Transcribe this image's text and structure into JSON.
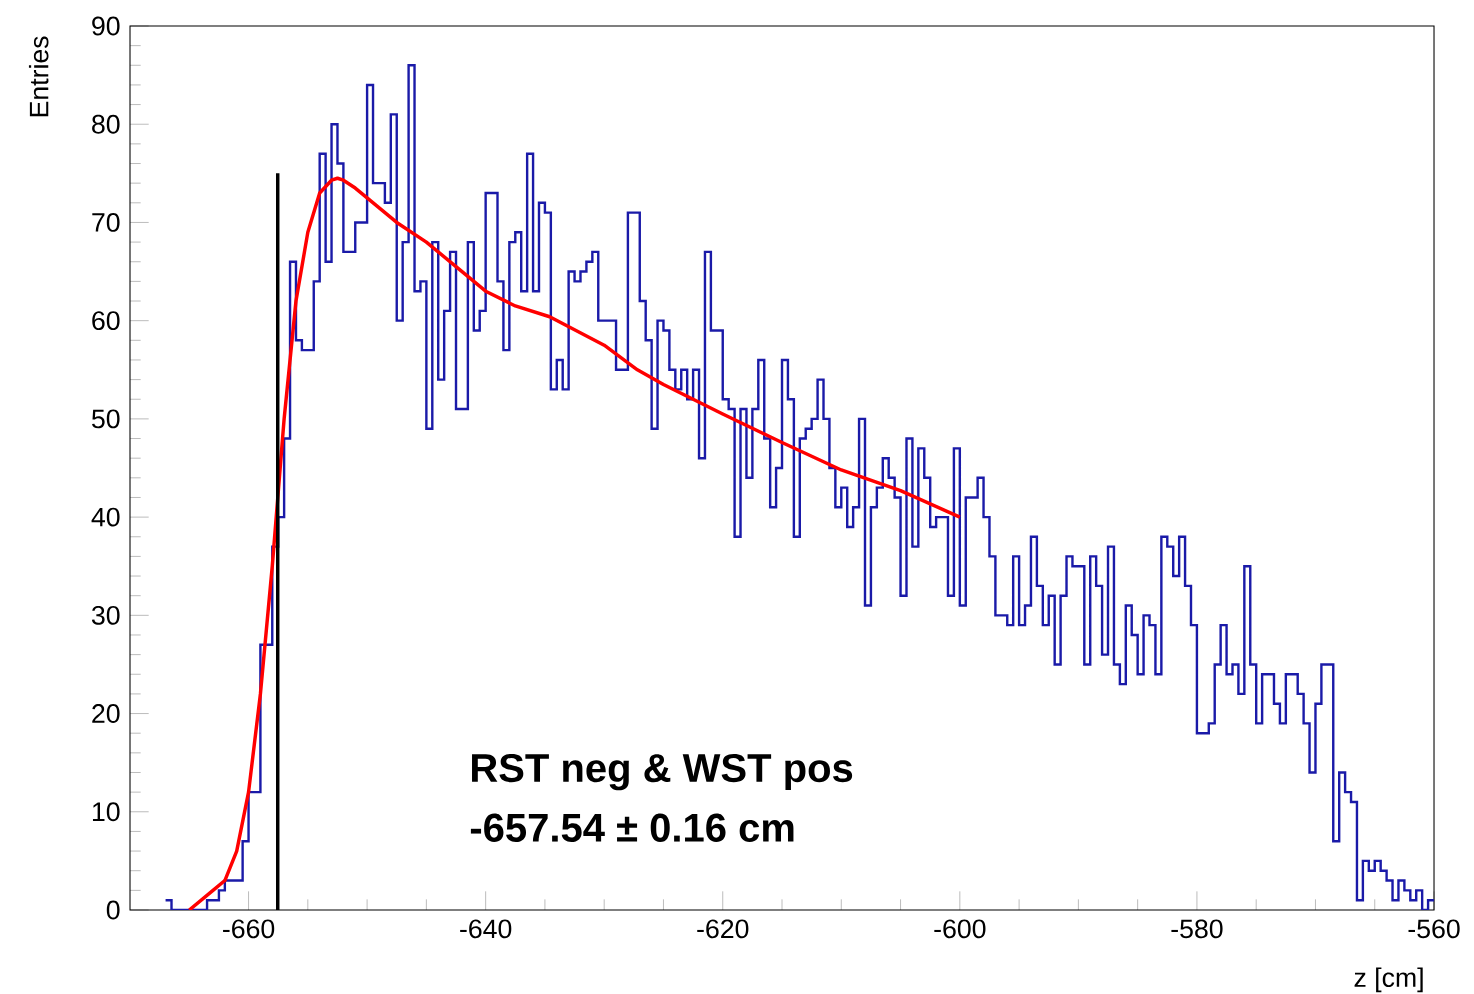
{
  "chart_data": {
    "type": "histogram",
    "xlabel": "z [cm]",
    "ylabel": "Entries",
    "annotations": [
      "RST neg & WST pos",
      "-657.54 ± 0.16 cm"
    ],
    "xlim": [
      -670,
      -560
    ],
    "ylim": [
      0,
      90
    ],
    "xticks": [
      -660,
      -640,
      -620,
      -600,
      -580,
      -560
    ],
    "yticks": [
      0,
      10,
      20,
      30,
      40,
      50,
      60,
      70,
      80,
      90
    ],
    "grid": false,
    "bins": [
      -667,
      -666.5,
      -666,
      -665.5,
      -665,
      -664.5,
      -664,
      -663.5,
      -663,
      -662.5,
      -662,
      -661.5,
      -661,
      -660.5,
      -660,
      -659.5,
      -659,
      -658.5,
      -658,
      -657.5,
      -657,
      -656.5,
      -656,
      -655.5,
      -655,
      -654.5,
      -654,
      -653.5,
      -653,
      -652.5,
      -652,
      -651.5,
      -651,
      -650.5,
      -650,
      -649.5,
      -649,
      -648.5,
      -648,
      -647.5,
      -647,
      -646.5,
      -646,
      -645.5,
      -645,
      -644.5,
      -644,
      -643.5,
      -643,
      -642.5,
      -642,
      -641.5,
      -641,
      -640.5,
      -640,
      -639.5,
      -639,
      -638.5,
      -638,
      -637.5,
      -637,
      -636.5,
      -636,
      -635.5,
      -635,
      -634.5,
      -634,
      -633.5,
      -633,
      -632.5,
      -632,
      -631.5,
      -631,
      -630.5,
      -630,
      -629.5,
      -629,
      -628.5,
      -628,
      -627.5,
      -627,
      -626.5,
      -626,
      -625.5,
      -625,
      -624.5,
      -624,
      -623.5,
      -623,
      -622.5,
      -622,
      -621.5,
      -621,
      -620.5,
      -620,
      -619.5,
      -619,
      -618.5,
      -618,
      -617.5,
      -617,
      -616.5,
      -616,
      -615.5,
      -615,
      -614.5,
      -614,
      -613.5,
      -613,
      -612.5,
      -612,
      -611.5,
      -611,
      -610.5,
      -610,
      -609.5,
      -609,
      -608.5,
      -608,
      -607.5,
      -607,
      -606.5,
      -606,
      -605.5,
      -605,
      -604.5,
      -604,
      -603.5,
      -603,
      -602.5,
      -602,
      -601.5,
      -601,
      -600.5,
      -600,
      -599.5,
      -599,
      -598.5,
      -598,
      -597.5,
      -597,
      -596.5,
      -596,
      -595.5,
      -595,
      -594.5,
      -594,
      -593.5,
      -593,
      -592.5,
      -592,
      -591.5,
      -591,
      -590.5,
      -590,
      -589.5,
      -589,
      -588.5,
      -588,
      -587.5,
      -587,
      -586.5,
      -586,
      -585.5,
      -585,
      -584.5,
      -584,
      -583.5,
      -583,
      -582.5,
      -582,
      -581.5,
      -581,
      -580.5,
      -580,
      -579.5,
      -579,
      -578.5,
      -578,
      -577.5,
      -577,
      -576.5,
      -576,
      -575.5,
      -575,
      -574.5,
      -574,
      -573.5,
      -573,
      -572.5,
      -572,
      -571.5,
      -571,
      -570.5,
      -570,
      -569.5,
      -569,
      -568.5,
      -568,
      -567.5,
      -567,
      -566.5,
      -566,
      -565.5,
      -565,
      -564.5,
      -564,
      -563.5,
      -563,
      -562.5,
      -562,
      -561.5,
      -561,
      -560.5,
      -560
    ],
    "series": [
      {
        "type": "histogram",
        "color": "#1a1aa8",
        "values": [
          1,
          0,
          0,
          0,
          0,
          0,
          0,
          1,
          1,
          2,
          3,
          3,
          3,
          7,
          12,
          12,
          27,
          27,
          37,
          40,
          48,
          66,
          58,
          57,
          57,
          64,
          77,
          66,
          80,
          76,
          67,
          67,
          70,
          70,
          84,
          74,
          74,
          72,
          81,
          60,
          68,
          86,
          63,
          64,
          49,
          68,
          54,
          61,
          67,
          51,
          51,
          68,
          59,
          61,
          73,
          73,
          64,
          57,
          68,
          69,
          63,
          77,
          63,
          72,
          71,
          53,
          56,
          53,
          65,
          64,
          65,
          66,
          67,
          60,
          60,
          60,
          55,
          55,
          71,
          71,
          62,
          58,
          49,
          60,
          59,
          55,
          53,
          55,
          52,
          55,
          46,
          67,
          59,
          59,
          52,
          51,
          38,
          51,
          44,
          51,
          56,
          48,
          41,
          45,
          56,
          52,
          38,
          48,
          49,
          50,
          54,
          50,
          45,
          41,
          43,
          39,
          41,
          50,
          31,
          41,
          43,
          46,
          44,
          42,
          32,
          48,
          37,
          47,
          44,
          39,
          40,
          40,
          32,
          47,
          31,
          42,
          42,
          44,
          40,
          36,
          30,
          30,
          29,
          36,
          29,
          31,
          38,
          33,
          29,
          32,
          25,
          32,
          36,
          35,
          35,
          25,
          36,
          33,
          26,
          37,
          25,
          23,
          31,
          28,
          24,
          30,
          29,
          24,
          38,
          37,
          34,
          38,
          33,
          29,
          18,
          18,
          19,
          25,
          29,
          24,
          25,
          22,
          35,
          25,
          19,
          24,
          24,
          21,
          19,
          24,
          24,
          22,
          19,
          14,
          21,
          25,
          25,
          7,
          14,
          12,
          11,
          1,
          5,
          4,
          5,
          4,
          3,
          1,
          3,
          2,
          1,
          2,
          0,
          1
        ]
      },
      {
        "type": "line",
        "color": "#ff0000",
        "x": [
          -665,
          -664,
          -663,
          -662,
          -661,
          -660,
          -659,
          -658,
          -657,
          -656,
          -655,
          -654,
          -653,
          -652.5,
          -652,
          -651,
          -650,
          -647.5,
          -645,
          -642.5,
          -640,
          -637.5,
          -634.6,
          -630,
          -627.2,
          -625,
          -620,
          -615,
          -610,
          -605,
          -600
        ],
        "values": [
          0,
          1,
          2,
          3,
          6,
          12,
          22,
          35,
          50,
          62,
          69,
          73,
          74.3,
          74.5,
          74.3,
          73.5,
          72.5,
          70,
          68,
          65.5,
          63,
          61.5,
          60.4,
          57.5,
          55,
          53.5,
          50.5,
          47.6,
          44.8,
          42.7,
          40
        ]
      },
      {
        "type": "line",
        "color": "#000000",
        "x": [
          -657.54,
          -657.54
        ],
        "values": [
          0,
          75
        ]
      }
    ]
  }
}
